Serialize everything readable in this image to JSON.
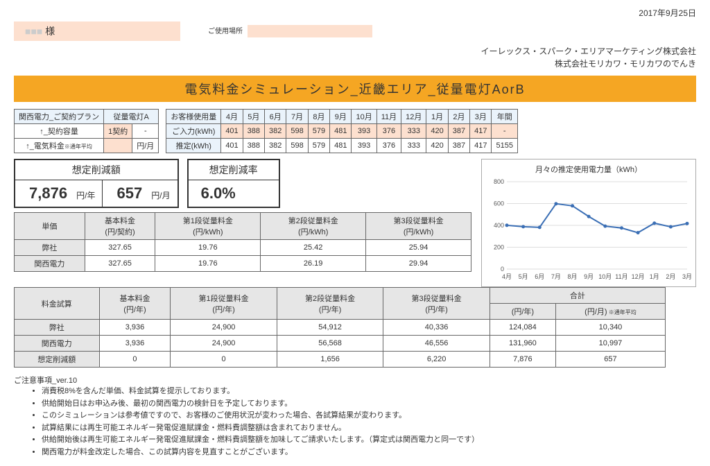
{
  "date": "2017年9月25日",
  "customer": {
    "name_suffix": "様",
    "location_label": "ご使用場所"
  },
  "company": {
    "line1": "イーレックス・スパーク・エリアマーケティング株式会社",
    "line2": "株式会社モリカワ・モリカワのでんき"
  },
  "title": "電気料金シミュレーション_近畿エリア_従量電灯AorB",
  "plan_table": {
    "header": "関西電力_ご契約プラン",
    "plan_name": "従量電灯A",
    "rows": [
      {
        "label": "↑_契約容量",
        "v1": "1契約",
        "v2": "-"
      },
      {
        "label": "↑_電気料金",
        "note": "※通年平均",
        "v1": "",
        "v2": "円/月"
      }
    ]
  },
  "usage": {
    "row_header": "お客様使用量",
    "months": [
      "4月",
      "5月",
      "6月",
      "7月",
      "8月",
      "9月",
      "10月",
      "11月",
      "12月",
      "1月",
      "2月",
      "3月",
      "年間"
    ],
    "input_label": "ご入力(kWh)",
    "input_vals": [
      "401",
      "388",
      "382",
      "598",
      "579",
      "481",
      "393",
      "376",
      "333",
      "420",
      "387",
      "417",
      "-"
    ],
    "est_label": "推定(kWh)",
    "est_vals": [
      "401",
      "388",
      "382",
      "598",
      "579",
      "481",
      "393",
      "376",
      "333",
      "420",
      "387",
      "417",
      "5155"
    ]
  },
  "savings": {
    "amount_label": "想定削減額",
    "per_year_val": "7,876",
    "per_year_unit": "円/年",
    "per_month_val": "657",
    "per_month_unit": "円/月",
    "rate_label": "想定削減率",
    "rate_val": "6.0%"
  },
  "chart": {
    "title": "月々の推定使用電力量（kWh）",
    "x_labels": [
      "4月",
      "5月",
      "6月",
      "7月",
      "8月",
      "9月",
      "10月",
      "11月",
      "12月",
      "1月",
      "2月",
      "3月"
    ],
    "y_ticks": [
      0,
      200,
      400,
      600,
      800
    ],
    "values": [
      401,
      388,
      382,
      598,
      579,
      481,
      393,
      376,
      333,
      420,
      387,
      417
    ],
    "ymax": 800,
    "line_color": "#3b6fb5",
    "grid_color": "#dddddd"
  },
  "price_table": {
    "headers": [
      "単価",
      "基本料金\n(円/契約)",
      "第1段従量料金\n(円/kWh)",
      "第2段従量料金\n(円/kWh)",
      "第3段従量料金\n(円/kWh)"
    ],
    "rows": [
      {
        "label": "弊社",
        "vals": [
          "327.65",
          "19.76",
          "25.42",
          "25.94"
        ]
      },
      {
        "label": "関西電力",
        "vals": [
          "327.65",
          "19.76",
          "26.19",
          "29.94"
        ]
      }
    ]
  },
  "calc_table": {
    "headers": [
      "料金試算",
      "基本料金\n(円/年)",
      "第1段従量料金\n(円/年)",
      "第2段従量料金\n(円/年)",
      "第3段従量料金\n(円/年)",
      "合計"
    ],
    "total_sub": [
      "(円/年)",
      "(円/月)"
    ],
    "total_note": "※通年平均",
    "rows": [
      {
        "label": "弊社",
        "vals": [
          "3,936",
          "24,900",
          "54,912",
          "40,336",
          "124,084",
          "10,340"
        ]
      },
      {
        "label": "関西電力",
        "vals": [
          "3,936",
          "24,900",
          "56,568",
          "46,556",
          "131,960",
          "10,997"
        ]
      },
      {
        "label": "想定削減額",
        "vals": [
          "0",
          "0",
          "1,656",
          "6,220",
          "7,876",
          "657"
        ]
      }
    ]
  },
  "notes": {
    "heading": "ご注意事項_ver.10",
    "items": [
      "消費税8%を含んだ単価、料金試算を提示しております。",
      "供給開始日はお申込み後、最初の関西電力の検針日を予定しております。",
      "このシミュレーションは参考値ですので、お客様のご使用状況が変わった場合、各試算結果が変わります。",
      "試算結果には再生可能エネルギー発電促進賦課金・燃料費調整額は含まれておりません。",
      "供給開始後は再生可能エネルギー発電促進賦課金・燃料費調整額を加味してご請求いたします。（算定式は関西電力と同一です）",
      "関西電力が料金改定した場合、この試算内容を見直すことがございます。"
    ]
  }
}
